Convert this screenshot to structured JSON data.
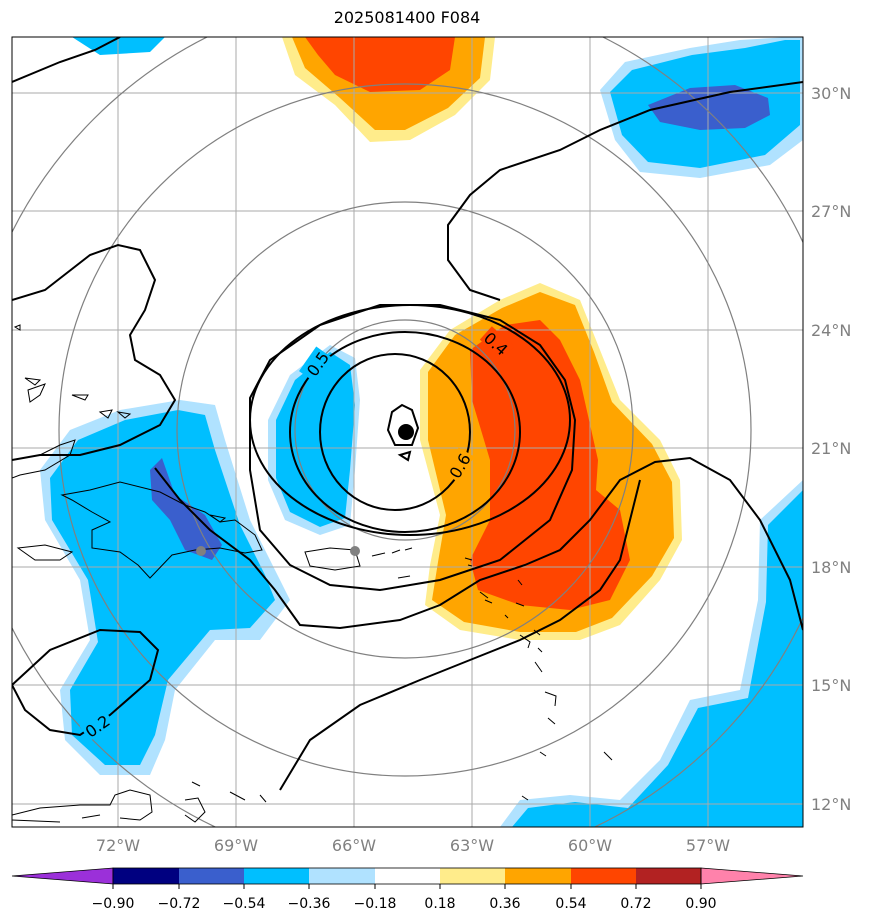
{
  "title": "2025081400 F084",
  "map": {
    "lon_labels": [
      "72°W",
      "69°W",
      "66°W",
      "63°W",
      "60°W",
      "57°W"
    ],
    "lat_labels": [
      "30°N",
      "27°N",
      "24°N",
      "21°N",
      "18°N",
      "15°N",
      "12°N"
    ],
    "contour_labels": [
      "0.5",
      "0.4",
      "0.6",
      "0.2"
    ],
    "colors": {
      "gridline": "#aaaaaa",
      "axis_label": "#808080",
      "range_ring": "#808080",
      "contour": "#000000",
      "center_marker": "#000000",
      "city_marker": "#808080"
    }
  },
  "colorbar": {
    "tick_labels": [
      "−0.90",
      "−0.72",
      "−0.54",
      "−0.36",
      "−0.18",
      "0.18",
      "0.36",
      "0.54",
      "0.72",
      "0.90"
    ],
    "bins": [
      {
        "label": "< −0.90",
        "color": "#9b30d9"
      },
      {
        "label": "−0.90 to −0.72",
        "color": "#000080"
      },
      {
        "label": "−0.72 to −0.54",
        "color": "#3a5fcd"
      },
      {
        "label": "−0.54 to −0.36",
        "color": "#00bfff"
      },
      {
        "label": "−0.36 to −0.18",
        "color": "#b0e2ff"
      },
      {
        "label": "−0.18 to 0.18",
        "color": "#ffffff"
      },
      {
        "label": "0.18 to 0.36",
        "color": "#ffec8b"
      },
      {
        "label": "0.36 to 0.54",
        "color": "#ffa500"
      },
      {
        "label": "0.54 to 0.72",
        "color": "#ff4500"
      },
      {
        "label": "0.72 to 0.90",
        "color": "#b22222"
      },
      {
        "label": "> 0.90",
        "color": "#ff82ab"
      }
    ]
  }
}
